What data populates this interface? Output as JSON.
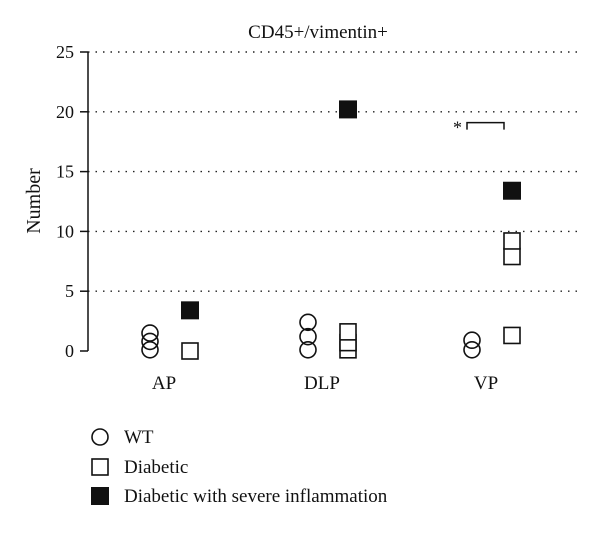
{
  "chart_data": {
    "type": "scatter",
    "title": "CD45+/vimentin+",
    "xlabel": "",
    "ylabel": "Number",
    "categories": [
      "AP",
      "DLP",
      "VP"
    ],
    "ylim": [
      0,
      25
    ],
    "yticks": [
      "0",
      "5",
      "10",
      "15",
      "20",
      "25"
    ],
    "grid": "horizontal-dotted",
    "legend_position": "bottom-left",
    "series": [
      {
        "name": "WT",
        "marker": "open-circle",
        "color": "#111111",
        "points": [
          {
            "category": "AP",
            "y": 0.1
          },
          {
            "category": "AP",
            "y": 0.8
          },
          {
            "category": "AP",
            "y": 1.5
          },
          {
            "category": "DLP",
            "y": 0.1
          },
          {
            "category": "DLP",
            "y": 1.2
          },
          {
            "category": "DLP",
            "y": 2.4
          },
          {
            "category": "VP",
            "y": 0.1
          },
          {
            "category": "VP",
            "y": 0.9
          }
        ]
      },
      {
        "name": "Diabetic",
        "marker": "open-square",
        "color": "#111111",
        "points": [
          {
            "category": "AP",
            "y": 0.0
          },
          {
            "category": "DLP",
            "y": 0.1
          },
          {
            "category": "DLP",
            "y": 0.7
          },
          {
            "category": "DLP",
            "y": 1.6
          },
          {
            "category": "VP",
            "y": 1.3
          },
          {
            "category": "VP",
            "y": 7.9
          },
          {
            "category": "VP",
            "y": 9.2
          }
        ]
      },
      {
        "name": "Diabetic with severe inflammation",
        "marker": "filled-square",
        "color": "#111111",
        "points": [
          {
            "category": "AP",
            "y": 3.4
          },
          {
            "category": "DLP",
            "y": 20.2
          },
          {
            "category": "VP",
            "y": 13.4
          }
        ]
      }
    ],
    "annotations": [
      {
        "text": "*",
        "type": "significance-bracket",
        "y": 19.1
      }
    ]
  }
}
